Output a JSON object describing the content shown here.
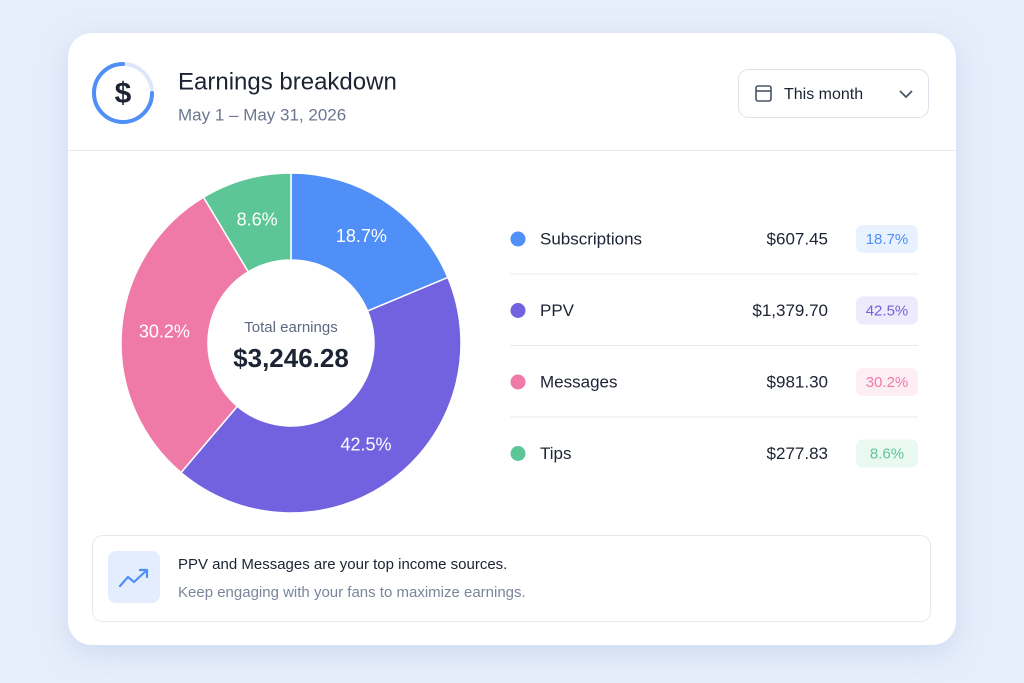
{
  "header": {
    "icon": "$",
    "title": "Earnings breakdown",
    "subtitle": "May 1 – May 31, 2026",
    "filter": "This month"
  },
  "chart_data": {
    "type": "pie",
    "categories": [
      "Subscriptions",
      "PPV",
      "Messages",
      "Tips"
    ],
    "values": [
      18.7,
      42.5,
      30.2,
      8.6
    ],
    "value_labels": [
      "18.7%",
      "42.5%",
      "30.2%",
      "8.6%"
    ],
    "colors": [
      "#4f8ff7",
      "#7262df",
      "#ef7aa8",
      "#5cc697"
    ],
    "amounts": [
      "$607.45",
      "$1,379.70",
      "$981.30",
      "$277.83"
    ],
    "center_label": "Total earnings",
    "center_value": "$3,246.28"
  },
  "footer": {
    "title": "PPV and Messages are your top income sources.",
    "text": "Keep engaging with your fans to maximize earnings."
  }
}
